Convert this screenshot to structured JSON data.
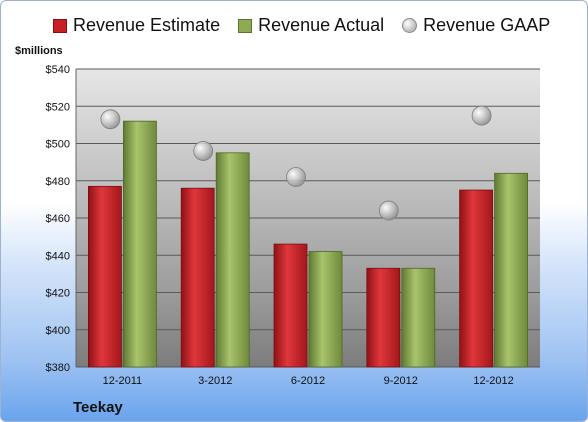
{
  "chart_data": {
    "type": "bar",
    "unit_label": "$millions",
    "company": "Teekay",
    "categories": [
      "12-2011",
      "3-2012",
      "6-2012",
      "9-2012",
      "12-2012"
    ],
    "series": [
      {
        "name": "Revenue Estimate",
        "kind": "bar",
        "color": "#c81f24",
        "values": [
          477,
          476,
          446,
          433,
          475
        ]
      },
      {
        "name": "Revenue Actual",
        "kind": "bar",
        "color": "#8eaa52",
        "values": [
          512,
          495,
          442,
          433,
          484
        ]
      },
      {
        "name": "Revenue GAAP",
        "kind": "marker",
        "color": "#b0b0b0",
        "values": [
          513,
          496,
          482,
          464,
          515
        ]
      }
    ],
    "ylim": [
      380,
      540
    ],
    "yticks": [
      380,
      400,
      420,
      440,
      460,
      480,
      500,
      520,
      540
    ],
    "ytick_labels": [
      "$380",
      "$400",
      "$420",
      "$440",
      "$460",
      "$480",
      "$500",
      "$520",
      "$540"
    ],
    "grid": true,
    "legend_position": "top"
  }
}
